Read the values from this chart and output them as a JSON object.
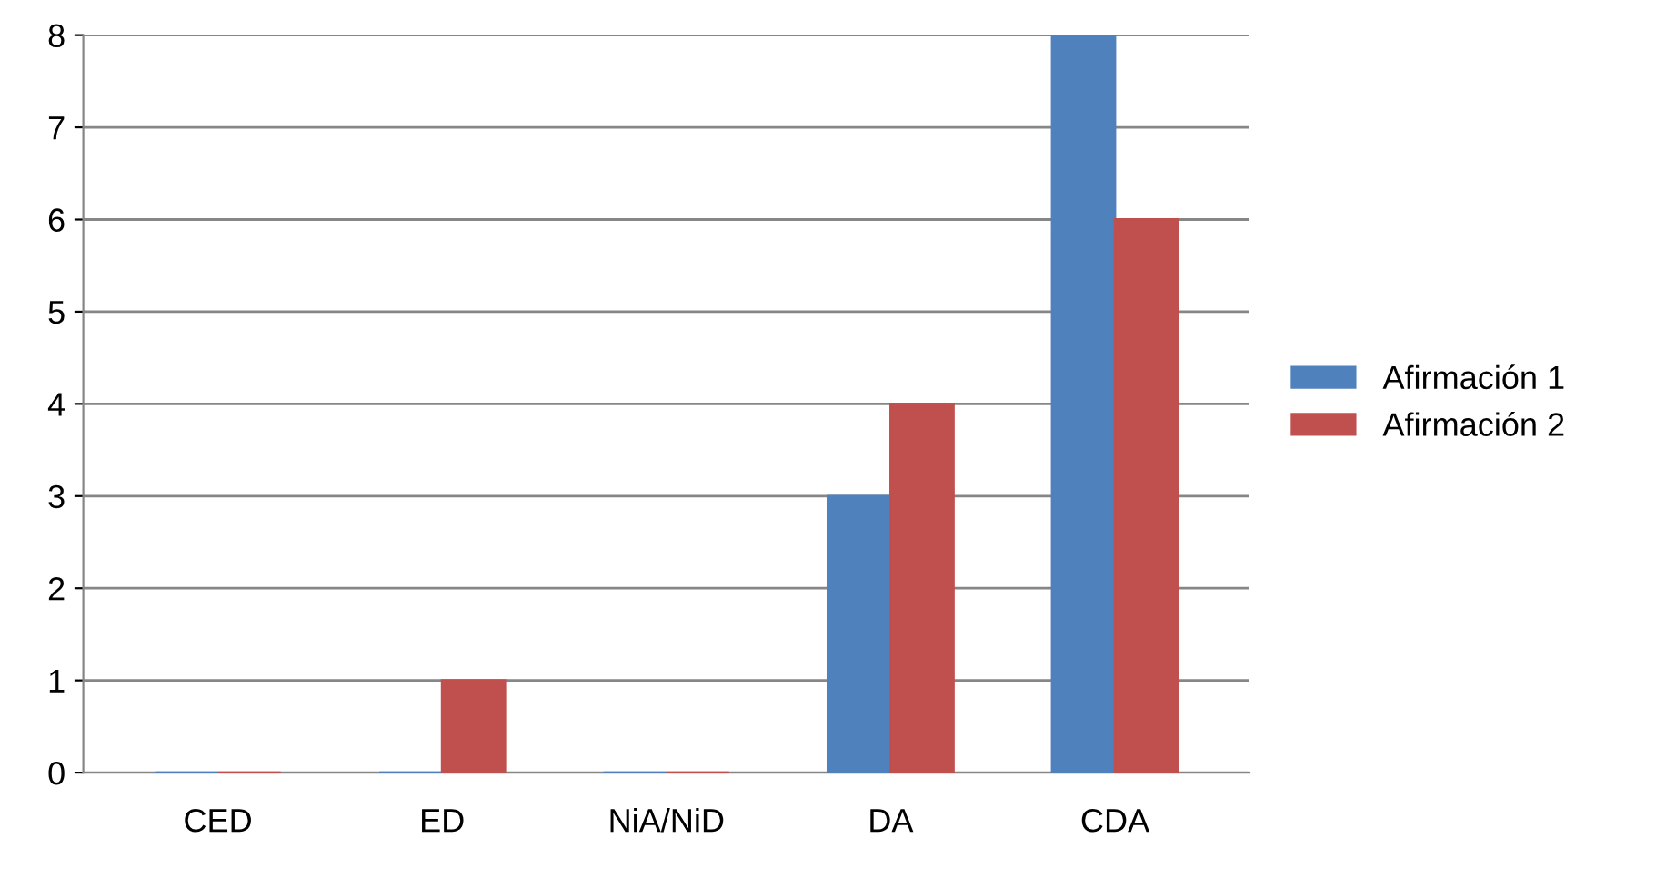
{
  "chart_data": {
    "type": "bar",
    "categories": [
      "CED",
      "ED",
      "NiA/NiD",
      "DA",
      "CDA"
    ],
    "series": [
      {
        "name": "Afirmación 1",
        "color": "#4f81bd",
        "values": [
          0,
          0,
          0,
          3,
          8
        ]
      },
      {
        "name": "Afirmación 2",
        "color": "#c0504d",
        "values": [
          0,
          1,
          0,
          4,
          6
        ]
      }
    ],
    "ylim": [
      0,
      8
    ],
    "yticks": [
      0,
      1,
      2,
      3,
      4,
      5,
      6,
      7,
      8
    ],
    "grid": "y",
    "legend": "right"
  }
}
